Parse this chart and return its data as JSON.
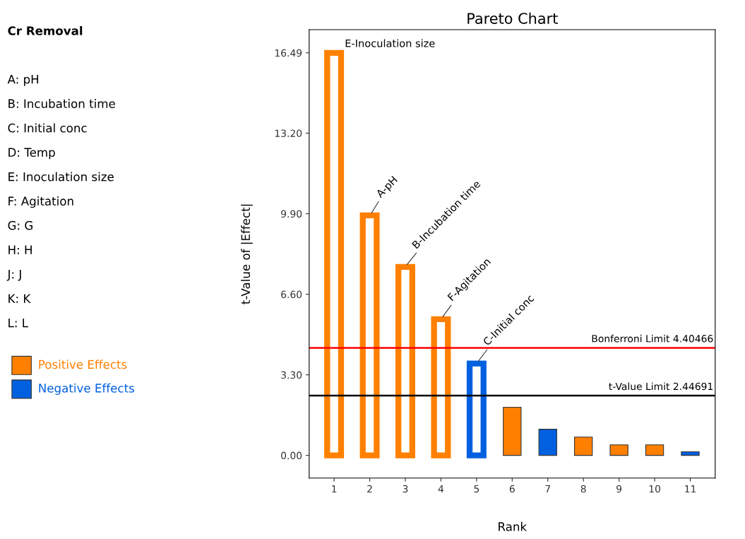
{
  "chart_data": {
    "type": "bar",
    "title": "Pareto Chart",
    "xlabel": "Rank",
    "ylabel": "t-Value of |Effect|",
    "categories": [
      "1",
      "2",
      "3",
      "4",
      "5",
      "6",
      "7",
      "8",
      "9",
      "10",
      "11"
    ],
    "series": [
      {
        "name": "Positive Effects",
        "color": "#ff8000",
        "values": [
          16.49,
          9.83,
          7.72,
          5.58,
          null,
          1.97,
          null,
          0.75,
          0.43,
          0.43,
          null
        ]
      },
      {
        "name": "Negative Effects",
        "color": "#0060e0",
        "values": [
          null,
          null,
          null,
          null,
          3.76,
          null,
          1.07,
          null,
          null,
          null,
          0.15
        ]
      }
    ],
    "ylim": [
      -0.93,
      17.44
    ],
    "yticks": [
      {
        "value": 0,
        "label": "0.00"
      },
      {
        "value": 3.3,
        "label": "3.30"
      },
      {
        "value": 6.6,
        "label": "6.60"
      },
      {
        "value": 9.9,
        "label": "9.90"
      },
      {
        "value": 13.2,
        "label": "13.20"
      },
      {
        "value": 16.49,
        "label": "16.49"
      }
    ],
    "ref_lines": [
      {
        "axis": "y",
        "value": 4.40466,
        "label": "Bonferroni Limit 4.40466",
        "color": "#ff0000"
      },
      {
        "axis": "y",
        "value": 2.44691,
        "label": "t-Value Limit 2.44691",
        "color": "#000000"
      }
    ],
    "annotations": [
      {
        "text": "E-Inoculation size",
        "x": "1",
        "y": 16.49
      },
      {
        "text": "A-pH",
        "x": "2",
        "y": 9.83
      },
      {
        "text": "B-Incubation time",
        "x": "3",
        "y": 7.72
      },
      {
        "text": "F-Agitation",
        "x": "4",
        "y": 5.58
      },
      {
        "text": "C-Initial conc",
        "x": "5",
        "y": 3.76
      },
      "Cr Removal",
      "A: pH",
      "B: Incubation time",
      "C: Initial conc",
      "D: Temp",
      "E: Inoculation size",
      "F: Agitation",
      "G: G",
      "H: H",
      "J: J",
      "K: K",
      "L: L"
    ],
    "legend": "left",
    "grid": false
  }
}
